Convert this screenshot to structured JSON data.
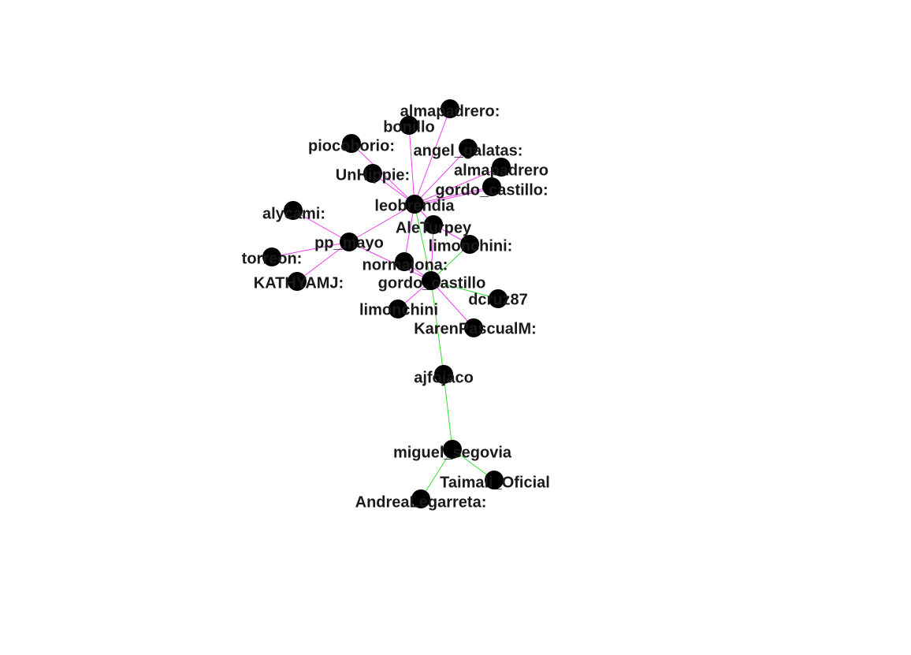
{
  "graph": {
    "edge_colors": {
      "magenta": "#ee3cee",
      "green": "#33dd33"
    },
    "node_color": "#000000",
    "nodes": [
      {
        "id": "almapadrero_c",
        "label": "almapadrero:"
      },
      {
        "id": "bonillo",
        "label": "bonillo"
      },
      {
        "id": "piocoborio",
        "label": "piocoborio:"
      },
      {
        "id": "angel_galatas",
        "label": "angel_galatas:"
      },
      {
        "id": "UnHippie",
        "label": "UnHippie:"
      },
      {
        "id": "almapadrero",
        "label": "almapadrero"
      },
      {
        "id": "gordo_castillo_c",
        "label": "gordo_castillo:"
      },
      {
        "id": "leobrendia",
        "label": "leobrendia"
      },
      {
        "id": "alycami",
        "label": "alycami:"
      },
      {
        "id": "AleTurpey",
        "label": "AleTurpey"
      },
      {
        "id": "pp_mayo",
        "label": "pp_mayo"
      },
      {
        "id": "limonchini_c",
        "label": "limonchini:"
      },
      {
        "id": "torreon",
        "label": "torreon:"
      },
      {
        "id": "normajona",
        "label": "normajona:"
      },
      {
        "id": "KATHYAMJ",
        "label": "KATHYAMJ:"
      },
      {
        "id": "gordo_castillo",
        "label": "gordo_castillo"
      },
      {
        "id": "dcruz87",
        "label": "dcruz87"
      },
      {
        "id": "limonchini",
        "label": "limonchini"
      },
      {
        "id": "KarenPascualM",
        "label": "KarenPascualM:"
      },
      {
        "id": "ajfojaco",
        "label": "ajfojaco"
      },
      {
        "id": "miguel_segovia",
        "label": "miguel_segovia"
      },
      {
        "id": "Taimali_Oficial",
        "label": "Taimali_Oficial"
      },
      {
        "id": "AndreaLegarreta",
        "label": "AndreaLegarreta:"
      }
    ],
    "edges": [
      {
        "from": "leobrendia",
        "to": "almapadrero_c",
        "color": "magenta"
      },
      {
        "from": "leobrendia",
        "to": "bonillo",
        "color": "magenta"
      },
      {
        "from": "leobrendia",
        "to": "piocoborio",
        "color": "magenta"
      },
      {
        "from": "leobrendia",
        "to": "angel_galatas",
        "color": "magenta"
      },
      {
        "from": "leobrendia",
        "to": "UnHippie",
        "color": "magenta"
      },
      {
        "from": "leobrendia",
        "to": "almapadrero",
        "color": "magenta"
      },
      {
        "from": "leobrendia",
        "to": "gordo_castillo_c",
        "color": "magenta"
      },
      {
        "from": "leobrendia",
        "to": "gordo_castillo_c",
        "color": "magenta"
      },
      {
        "from": "leobrendia",
        "to": "AleTurpey",
        "color": "magenta"
      },
      {
        "from": "leobrendia",
        "to": "pp_mayo",
        "color": "magenta"
      },
      {
        "from": "leobrendia",
        "to": "normajona",
        "color": "magenta"
      },
      {
        "from": "leobrendia",
        "to": "gordo_castillo",
        "color": "green"
      },
      {
        "from": "pp_mayo",
        "to": "alycami",
        "color": "magenta"
      },
      {
        "from": "pp_mayo",
        "to": "torreon",
        "color": "magenta"
      },
      {
        "from": "pp_mayo",
        "to": "KATHYAMJ",
        "color": "magenta"
      },
      {
        "from": "pp_mayo",
        "to": "gordo_castillo",
        "color": "magenta"
      },
      {
        "from": "AleTurpey",
        "to": "limonchini_c",
        "color": "magenta"
      },
      {
        "from": "AleTurpey",
        "to": "gordo_castillo",
        "color": "magenta"
      },
      {
        "from": "normajona",
        "to": "gordo_castillo",
        "color": "magenta"
      },
      {
        "from": "limonchini_c",
        "to": "gordo_castillo",
        "color": "green"
      },
      {
        "from": "gordo_castillo",
        "to": "limonchini",
        "color": "magenta"
      },
      {
        "from": "gordo_castillo",
        "to": "dcruz87",
        "color": "green"
      },
      {
        "from": "gordo_castillo",
        "to": "KarenPascualM",
        "color": "magenta"
      },
      {
        "from": "gordo_castillo",
        "to": "ajfojaco",
        "color": "green"
      },
      {
        "from": "ajfojaco",
        "to": "miguel_segovia",
        "color": "green"
      },
      {
        "from": "miguel_segovia",
        "to": "Taimali_Oficial",
        "color": "green"
      },
      {
        "from": "miguel_segovia",
        "to": "AndreaLegarreta",
        "color": "green"
      }
    ]
  }
}
